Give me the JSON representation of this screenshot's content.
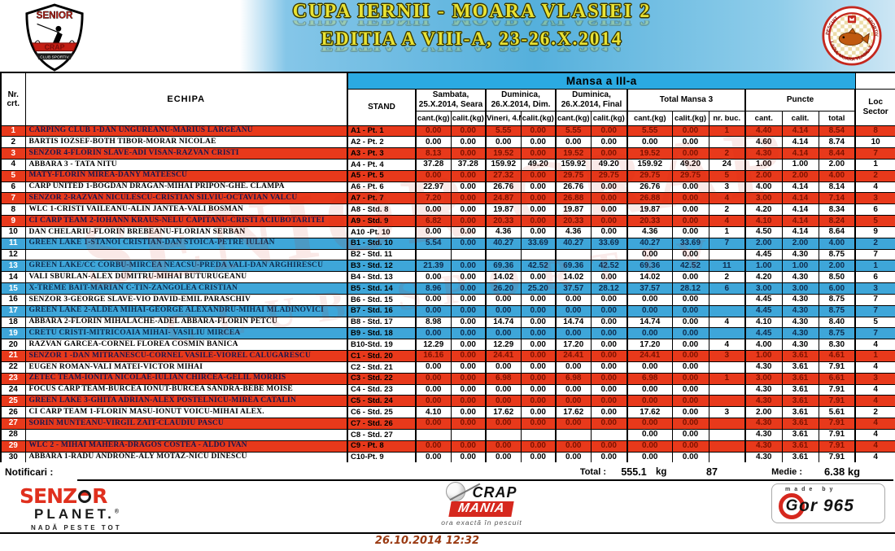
{
  "header": {
    "title_line1": "CUPA IERNII - MOARA VLASIEI 2",
    "title_line2": "EDITIA  A VIII-A, 23-26.X.2014",
    "shield": {
      "top": "SENIOR",
      "mid": "CRAP",
      "bottom": "CLUB SPORTIV"
    },
    "badge": {
      "left_text": "PESCUIT",
      "right_text": "SPORTIV",
      "bottom_text": "LACUL MOARA VLASIEI 2"
    }
  },
  "watermark": {
    "line1": "SENIOR CRAP",
    "line2": "CLUB SPORTIV"
  },
  "table": {
    "mansa_header": "Mansa a III-a",
    "col_nr": {
      "line1": "Nr.",
      "line2": "crt."
    },
    "col_echipa": "ECHIPA",
    "col_stand": "STAND",
    "groups": {
      "sambata": {
        "line1": "Sambata,",
        "line2": "25.X.2014, Seara"
      },
      "dum_dim": {
        "line1": "Duminica,",
        "line2": "26.X.2014, Dim."
      },
      "dum_final": {
        "line1": "Duminica,",
        "line2": "26.X.2014, Final"
      },
      "total": "Total Mansa 3",
      "puncte": "Puncte",
      "loc": {
        "line1": "Loc",
        "line2": "Sector"
      }
    },
    "sub": [
      "cant.(kg)",
      "calit.(kg)",
      "Vineri, 4.N",
      "calit.(kg)",
      "cant.(kg)",
      "calit.(kg)",
      "cant.(kg)",
      "calit.(kg)",
      "nr. buc.",
      "cant.",
      "calit.",
      "total"
    ],
    "rows": [
      {
        "nr": "1",
        "echipa": "CARPING CLUB 1-DAN UNGUREANU-MARIUS LARGEANU",
        "stand": "A1 - Pt. 1",
        "v": [
          "0.00",
          "0.00",
          "5.55",
          "0.00",
          "5.55",
          "0.00",
          "5.55",
          "0.00",
          "1",
          "4.40",
          "4.14",
          "8.54"
        ],
        "loc": "8",
        "band": "red"
      },
      {
        "nr": "2",
        "echipa": "BARTIS IOZSEF-BOTH TIBOR-MORAR NICOLAE",
        "stand": "A2 - Pt. 2",
        "v": [
          "0.00",
          "0.00",
          "0.00",
          "0.00",
          "0.00",
          "0.00",
          "0.00",
          "0.00",
          "",
          "4.60",
          "4.14",
          "8.74"
        ],
        "loc": "10",
        "band": "white"
      },
      {
        "nr": "3",
        "echipa": "SENZOR 4-FLORIN SLAVE-ADI VISAN-RAZVAN CRISTI",
        "stand": "A3 - Pt. 3",
        "v": [
          "8.13",
          "0.00",
          "19.52",
          "0.00",
          "19.52",
          "0.00",
          "19.52",
          "0.00",
          "2",
          "4.30",
          "4.14",
          "8.44"
        ],
        "loc": "7",
        "band": "red"
      },
      {
        "nr": "4",
        "echipa": "ABBARA 3 - TATA NITU",
        "stand": "A4 - Pt. 4",
        "v": [
          "37.28",
          "37.28",
          "159.92",
          "49.20",
          "159.92",
          "49.20",
          "159.92",
          "49.20",
          "24",
          "1.00",
          "1.00",
          "2.00"
        ],
        "loc": "1",
        "band": "white"
      },
      {
        "nr": "5",
        "echipa": "MATY-FLORIN MIREA-DANY MATEESCU",
        "stand": "A5 - Pt. 5",
        "v": [
          "0.00",
          "0.00",
          "27.32",
          "0.00",
          "29.75",
          "29.75",
          "29.75",
          "29.75",
          "5",
          "2.00",
          "2.00",
          "4.00"
        ],
        "loc": "2",
        "band": "red"
      },
      {
        "nr": "6",
        "echipa": "CARP UNITED 1-BOGDAN DRAGAN-MIHAI PRIPON-GHE. CLAMPA",
        "stand": "A6 - Pt. 6",
        "v": [
          "22.97",
          "0.00",
          "26.76",
          "0.00",
          "26.76",
          "0.00",
          "26.76",
          "0.00",
          "3",
          "4.00",
          "4.14",
          "8.14"
        ],
        "loc": "4",
        "band": "white"
      },
      {
        "nr": "7",
        "echipa": "SENZOR 2-RAZVAN NICULESCU-CRISTIAN SILVIU-OCTAVIAN VALCU",
        "stand": "A7 - Pt. 7",
        "v": [
          "7.20",
          "0.00",
          "24.87",
          "0.00",
          "26.88",
          "0.00",
          "26.88",
          "0.00",
          "4",
          "3.00",
          "4.14",
          "7.14"
        ],
        "loc": "3",
        "band": "red"
      },
      {
        "nr": "8",
        "echipa": "WLC 1-CRISTI VAILEANU-ALIN JANTEA-VALI BOSMAN",
        "stand": "A8 - Std. 8",
        "v": [
          "0.00",
          "0.00",
          "19.87",
          "0.00",
          "19.87",
          "0.00",
          "19.87",
          "0.00",
          "2",
          "4.20",
          "4.14",
          "8.34"
        ],
        "loc": "6",
        "band": "white"
      },
      {
        "nr": "9",
        "echipa": "CI CARP TEAM 2-IOHANN KRAUS-NELU CAPITANU-CRISTI ACIUBOTARITEI",
        "stand": "A9 - Std. 9",
        "v": [
          "6.82",
          "0.00",
          "20.33",
          "0.00",
          "20.33",
          "0.00",
          "20.33",
          "0.00",
          "4",
          "4.10",
          "4.14",
          "8.24"
        ],
        "loc": "5",
        "band": "red"
      },
      {
        "nr": "10",
        "echipa": "DAN CHELARIU-FLORIN BREBEANU-FLORIAN SERBAN",
        "stand": "A10 -Pt. 10",
        "v": [
          "0.00",
          "0.00",
          "4.36",
          "0.00",
          "4.36",
          "0.00",
          "4.36",
          "0.00",
          "1",
          "4.50",
          "4.14",
          "8.64"
        ],
        "loc": "9",
        "band": "white"
      },
      {
        "nr": "11",
        "echipa": "GREEN LAKE 1-STANOI CRISTIAN-DAN STOICA-PETRE IULIAN",
        "stand": "B1 - Std. 10",
        "v": [
          "5.54",
          "0.00",
          "40.27",
          "33.69",
          "40.27",
          "33.69",
          "40.27",
          "33.69",
          "7",
          "2.00",
          "2.00",
          "4.00"
        ],
        "loc": "2",
        "band": "blue"
      },
      {
        "nr": "12",
        "echipa": "",
        "stand": "B2 - Std. 11",
        "v": [
          "",
          "",
          "",
          "",
          "",
          "",
          "0.00",
          "0.00",
          "",
          "4.45",
          "4.30",
          "8.75"
        ],
        "loc": "7",
        "band": "white"
      },
      {
        "nr": "13",
        "echipa": "GREEN LAKE/CC CORBU-MIRCEA NEACSU-PREDA VALI-DAN ARGHIRESCU",
        "stand": "B3 - Std. 12",
        "v": [
          "21.39",
          "0.00",
          "69.36",
          "42.52",
          "69.36",
          "42.52",
          "69.36",
          "42.52",
          "11",
          "1.00",
          "1.00",
          "2.00"
        ],
        "loc": "1",
        "band": "blue"
      },
      {
        "nr": "14",
        "echipa": "VALI SBURLAN-ALEX DUMITRU-MIHAI BUTURUGEANU",
        "stand": "B4 - Std. 13",
        "v": [
          "0.00",
          "0.00",
          "14.02",
          "0.00",
          "14.02",
          "0.00",
          "14.02",
          "0.00",
          "2",
          "4.20",
          "4.30",
          "8.50"
        ],
        "loc": "6",
        "band": "white"
      },
      {
        "nr": "15",
        "echipa": "X-TREME BAIT-MARIAN C-TIN-ZANGOLEA CRISTIAN",
        "stand": "B5 - Std. 14",
        "v": [
          "8.96",
          "0.00",
          "26.20",
          "25.20",
          "37.57",
          "28.12",
          "37.57",
          "28.12",
          "6",
          "3.00",
          "3.00",
          "6.00"
        ],
        "loc": "3",
        "band": "blue"
      },
      {
        "nr": "16",
        "echipa": "SENZOR 3-GEORGE SLAVE-VIO DAVID-EMIL PARASCHIV",
        "stand": "B6 - Std. 15",
        "v": [
          "0.00",
          "0.00",
          "0.00",
          "0.00",
          "0.00",
          "0.00",
          "0.00",
          "0.00",
          "",
          "4.45",
          "4.30",
          "8.75"
        ],
        "loc": "7",
        "band": "white"
      },
      {
        "nr": "17",
        "echipa": "GREEN LAKE 2-ALDEA MIHAI-GEORGE ALEXANDRU-MIHAI MLADINOVICI",
        "stand": "B7 - Std. 16",
        "v": [
          "0.00",
          "0.00",
          "0.00",
          "0.00",
          "0.00",
          "0.00",
          "0.00",
          "0.00",
          "",
          "4.45",
          "4.30",
          "8.75"
        ],
        "loc": "7",
        "band": "blue"
      },
      {
        "nr": "18",
        "echipa": "ABBARA 2-FLORIN MIHALACHE-ADEL ABBARA-FLORIN PETCU",
        "stand": "B8 - Std. 17",
        "v": [
          "8.98",
          "0.00",
          "14.74",
          "0.00",
          "14.74",
          "0.00",
          "14.74",
          "0.00",
          "4",
          "4.10",
          "4.30",
          "8.40"
        ],
        "loc": "5",
        "band": "white"
      },
      {
        "nr": "19",
        "echipa": "CRETU CRISTI-MITRICOAIA MIHAI- VASILIU MIRCEA",
        "stand": "B9 - Std. 18",
        "v": [
          "0.00",
          "0.00",
          "0.00",
          "0.00",
          "0.00",
          "0.00",
          "0.00",
          "0.00",
          "",
          "4.45",
          "4.30",
          "8.75"
        ],
        "loc": "7",
        "band": "blue"
      },
      {
        "nr": "20",
        "echipa": "RAZVAN GARCEA-CORNEL FLOREA COSMIN BANICA",
        "stand": "B10-Std. 19",
        "v": [
          "12.29",
          "0.00",
          "12.29",
          "0.00",
          "17.20",
          "0.00",
          "17.20",
          "0.00",
          "4",
          "4.00",
          "4.30",
          "8.30"
        ],
        "loc": "4",
        "band": "white"
      },
      {
        "nr": "21",
        "echipa": "SENZOR 1 -DAN MITRANESCU-CORNEL VASILE-VIOREL CALUGARESCU",
        "stand": "C1 - Std. 20",
        "v": [
          "16.16",
          "0.00",
          "24.41",
          "0.00",
          "24.41",
          "0.00",
          "24.41",
          "0.00",
          "3",
          "1.00",
          "3.61",
          "4.61"
        ],
        "loc": "1",
        "band": "red"
      },
      {
        "nr": "22",
        "echipa": "EUGEN ROMAN-VALI MATEI-VICTOR MIHAI",
        "stand": "C2 - Std. 21",
        "v": [
          "0.00",
          "0.00",
          "0.00",
          "0.00",
          "0.00",
          "0.00",
          "0.00",
          "0.00",
          "",
          "4.30",
          "3.61",
          "7.91"
        ],
        "loc": "4",
        "band": "white"
      },
      {
        "nr": "23",
        "echipa": "ZETEC TEAM-IONITA NICOLAE-IULIAN CHIRCEA-GELIL MORRIS",
        "stand": "C3 - Std. 22",
        "v": [
          "0.00",
          "0.00",
          "6.98",
          "0.00",
          "6.98",
          "0.00",
          "6.98",
          "0.00",
          "1",
          "3.00",
          "3.61",
          "6.61"
        ],
        "loc": "3",
        "band": "red"
      },
      {
        "nr": "24",
        "echipa": "FOCUS CARP TEAM-BURCEA IONUT-BURCEA SANDRA-BEBE MOISE",
        "stand": "C4 - Std. 23",
        "v": [
          "0.00",
          "0.00",
          "0.00",
          "0.00",
          "0.00",
          "0.00",
          "0.00",
          "0.00",
          "",
          "4.30",
          "3.61",
          "7.91"
        ],
        "loc": "4",
        "band": "white"
      },
      {
        "nr": "25",
        "echipa": "GREEN LAKE 3-GHITA ADRIAN-ALEX POSTELNICU-MIREA CATALIN",
        "stand": "C5 - Std. 24",
        "v": [
          "0.00",
          "0.00",
          "0.00",
          "0.00",
          "0.00",
          "0.00",
          "0.00",
          "0.00",
          "",
          "4.30",
          "3.61",
          "7.91"
        ],
        "loc": "4",
        "band": "red"
      },
      {
        "nr": "26",
        "echipa": "CI CARP TEAM 1-FLORIN MASU-IONUT VOICU-MIHAI ALEX.",
        "stand": "C6 - Std. 25",
        "v": [
          "4.10",
          "0.00",
          "17.62",
          "0.00",
          "17.62",
          "0.00",
          "17.62",
          "0.00",
          "3",
          "2.00",
          "3.61",
          "5.61"
        ],
        "loc": "2",
        "band": "white"
      },
      {
        "nr": "27",
        "echipa": "SORIN MUNTEANU-VIRGIL ZAIT-CLAUDIU PASCU",
        "stand": "C7 - Std. 26",
        "v": [
          "0.00",
          "0.00",
          "0.00",
          "0.00",
          "0.00",
          "0.00",
          "0.00",
          "0.00",
          "",
          "4.30",
          "3.61",
          "7.91"
        ],
        "loc": "4",
        "band": "red"
      },
      {
        "nr": "28",
        "echipa": "",
        "stand": "C8 - Std. 27",
        "v": [
          "",
          "",
          "",
          "",
          "",
          "",
          "0.00",
          "0.00",
          "",
          "4.30",
          "3.61",
          "7.91"
        ],
        "loc": "4",
        "band": "white"
      },
      {
        "nr": "29",
        "echipa": "WLC 2 - MIHAI MAHERA-DRAGOS COSTEA - ALDO IVAN",
        "stand": "C9 - Pt. 8",
        "v": [
          "0.00",
          "0.00",
          "0.00",
          "0.00",
          "0.00",
          "0.00",
          "0.00",
          "0.00",
          "",
          "4.30",
          "3.61",
          "7.91"
        ],
        "loc": "4",
        "band": "red"
      },
      {
        "nr": "30",
        "echipa": "ABBARA 1-RADU ANDRONE-ALY MOTAZ-NICU DINESCU",
        "stand": "C10-Pt. 9",
        "v": [
          "0.00",
          "0.00",
          "0.00",
          "0.00",
          "0.00",
          "0.00",
          "0.00",
          "0.00",
          "",
          "4.30",
          "3.61",
          "7.91"
        ],
        "loc": "4",
        "band": "white"
      }
    ]
  },
  "totals": {
    "notificari": "Notificari :",
    "total_label": "Total :",
    "total_value": "555.1",
    "total_unit": "kg",
    "total_pieces": "87",
    "medie_label": "Medie :",
    "medie_value": "6.38 kg"
  },
  "sponsors": {
    "senzor": {
      "word_a": "SENZ",
      "word_b": "R",
      "line2": "PLANET.",
      "reg": "®",
      "tagline": "NADĂ PESTE TOT"
    },
    "crapmania": {
      "line1": "CRAP",
      "line2": "MANIA",
      "tagline": "ora exactă în pescuit"
    },
    "gor": {
      "made_by": "made by",
      "g": "G",
      "rest": "or 965"
    }
  },
  "footer": {
    "date": "26.10.2014 12:32"
  }
}
